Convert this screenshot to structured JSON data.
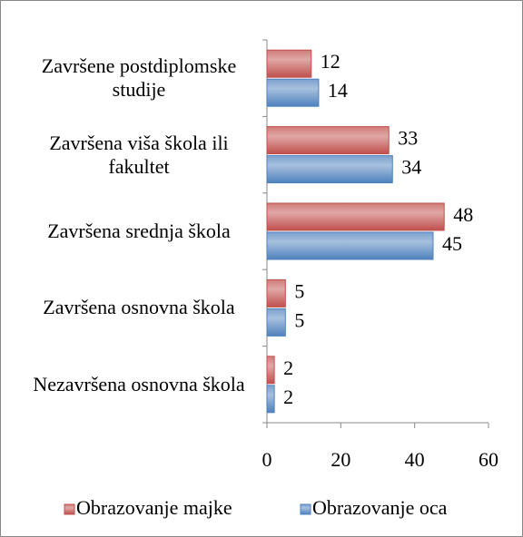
{
  "chart_data": {
    "type": "bar",
    "orientation": "horizontal",
    "categories": [
      "Završene postdiplomske studije",
      "Završena viša škola ili fakultet",
      "Završena srednja škola",
      "Završena osnovna škola",
      "Nezavršena osnovna škola"
    ],
    "series": [
      {
        "name": "Obrazovanje majke",
        "color": "#c0504d",
        "values": [
          12,
          33,
          48,
          5,
          2
        ]
      },
      {
        "name": "Obrazovanje oca",
        "color": "#4f81bd",
        "values": [
          14,
          34,
          45,
          5,
          2
        ]
      }
    ],
    "xlim": [
      0,
      60
    ],
    "xticks": [
      0,
      20,
      40,
      60
    ],
    "legend": "bottom"
  }
}
